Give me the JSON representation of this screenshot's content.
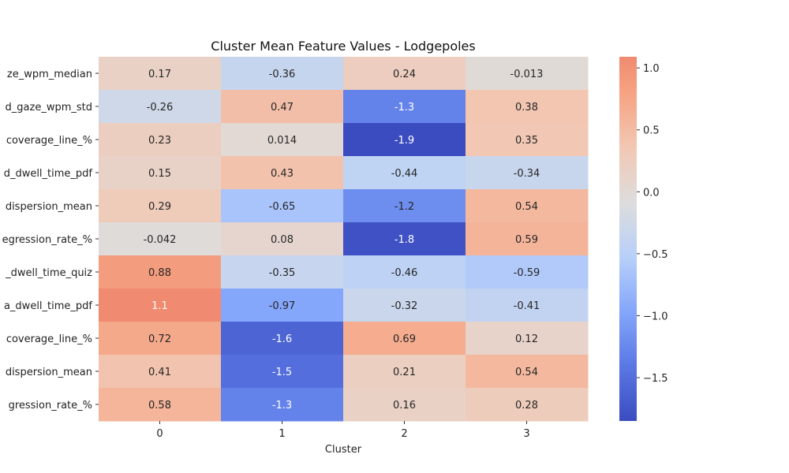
{
  "chart_data": {
    "type": "heatmap",
    "title": "Cluster Mean Feature Values - Lodgepoles",
    "xlabel": "Cluster",
    "ylabel": "",
    "columns": [
      "0",
      "1",
      "2",
      "3"
    ],
    "rows": [
      "ze_wpm_median",
      "d_gaze_wpm_std",
      "coverage_line_%",
      "d_dwell_time_pdf",
      "dispersion_mean",
      "egression_rate_%",
      "_dwell_time_quiz",
      "a_dwell_time_pdf",
      "coverage_line_%",
      "dispersion_mean",
      "gression_rate_%"
    ],
    "values": [
      [
        0.17,
        -0.36,
        0.24,
        -0.013
      ],
      [
        -0.26,
        0.47,
        -1.3,
        0.38
      ],
      [
        0.23,
        0.014,
        -1.9,
        0.35
      ],
      [
        0.15,
        0.43,
        -0.44,
        -0.34
      ],
      [
        0.29,
        -0.65,
        -1.2,
        0.54
      ],
      [
        -0.042,
        0.08,
        -1.8,
        0.59
      ],
      [
        0.88,
        -0.35,
        -0.46,
        -0.59
      ],
      [
        1.1,
        -0.97,
        -0.32,
        -0.41
      ],
      [
        0.72,
        -1.6,
        0.69,
        0.12
      ],
      [
        0.41,
        -1.5,
        0.21,
        0.54
      ],
      [
        0.58,
        -1.3,
        0.16,
        0.28
      ]
    ],
    "colormap": "coolwarm",
    "vmin": -1.85,
    "vmax": 1.09,
    "colorbar_ticks": [
      {
        "value": 1.0,
        "label": "1.0"
      },
      {
        "value": 0.5,
        "label": "0.5"
      },
      {
        "value": 0.0,
        "label": "0.0"
      },
      {
        "value": -0.5,
        "label": "−0.5"
      },
      {
        "value": -1.0,
        "label": "−1.0"
      },
      {
        "value": -1.5,
        "label": "−1.5"
      }
    ],
    "colors": {
      "low": "#3b4cc0",
      "mid": "#dddddd",
      "high": "#f08a70"
    }
  }
}
